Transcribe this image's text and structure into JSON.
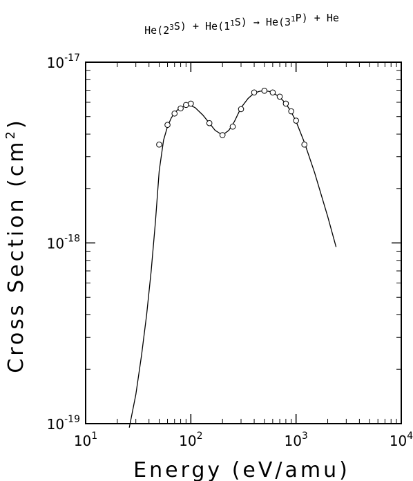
{
  "chart_data": {
    "type": "line",
    "title": {
      "parts": [
        {
          "t": "He(2",
          "sup": "3"
        },
        {
          "t": "S) + He(1",
          "sup": "1"
        },
        {
          "t": "S) → He(3",
          "sup": "1"
        },
        {
          "t": "P) + He",
          "sup": ""
        }
      ]
    },
    "xlabel": "Energy (eV/amu)",
    "ylabel": "Cross Section (cm",
    "ylabel_sup": "2",
    "ylabel_close": ")",
    "xscale": "log",
    "yscale": "log",
    "xlim": [
      10,
      10000
    ],
    "ylim": [
      1e-19,
      1e-17
    ],
    "x_ticks": [
      {
        "base": "10",
        "exp": "1"
      },
      {
        "base": "10",
        "exp": "2"
      },
      {
        "base": "10",
        "exp": "3"
      },
      {
        "base": "10",
        "exp": "4"
      }
    ],
    "y_ticks": [
      {
        "base": "10",
        "exp": "-19"
      },
      {
        "base": "10",
        "exp": "-18"
      },
      {
        "base": "10",
        "exp": "-17"
      }
    ],
    "grid": false,
    "legend": "none",
    "series": [
      {
        "kind": "line",
        "x": [
          26,
          30,
          34,
          38,
          42,
          46,
          50,
          55,
          60,
          65,
          70,
          75,
          80,
          90,
          100,
          110,
          130,
          150,
          170,
          200,
          230,
          260,
          300,
          350,
          400,
          450,
          500,
          550,
          600,
          700,
          800,
          900,
          1000,
          1200,
          1500,
          2000,
          2400
        ],
        "y": [
          9.5e-20,
          1.45e-19,
          2.4e-19,
          4e-19,
          7e-19,
          1.3e-18,
          2.5e-18,
          3.7e-18,
          4.4e-18,
          4.9e-18,
          5.25e-18,
          5.45e-18,
          5.6e-18,
          5.75e-18,
          5.75e-18,
          5.6e-18,
          5.1e-18,
          4.6e-18,
          4.2e-18,
          3.95e-18,
          4.2e-18,
          4.7e-18,
          5.6e-18,
          6.3e-18,
          6.75e-18,
          6.9e-18,
          6.95e-18,
          6.9e-18,
          6.8e-18,
          6.4e-18,
          5.9e-18,
          5.3e-18,
          4.7e-18,
          3.6e-18,
          2.45e-18,
          1.4e-18,
          9.5e-19
        ]
      },
      {
        "kind": "markers",
        "x": [
          50,
          60,
          70,
          80,
          90,
          100,
          150,
          200,
          250,
          300,
          400,
          500,
          600,
          700,
          800,
          900,
          1000,
          1200
        ],
        "y": [
          3.5e-18,
          4.5e-18,
          5.2e-18,
          5.55e-18,
          5.8e-18,
          5.9e-18,
          4.6e-18,
          3.95e-18,
          4.4e-18,
          5.5e-18,
          6.8e-18,
          6.95e-18,
          6.8e-18,
          6.45e-18,
          5.9e-18,
          5.35e-18,
          4.75e-18,
          3.5e-18
        ]
      }
    ]
  }
}
